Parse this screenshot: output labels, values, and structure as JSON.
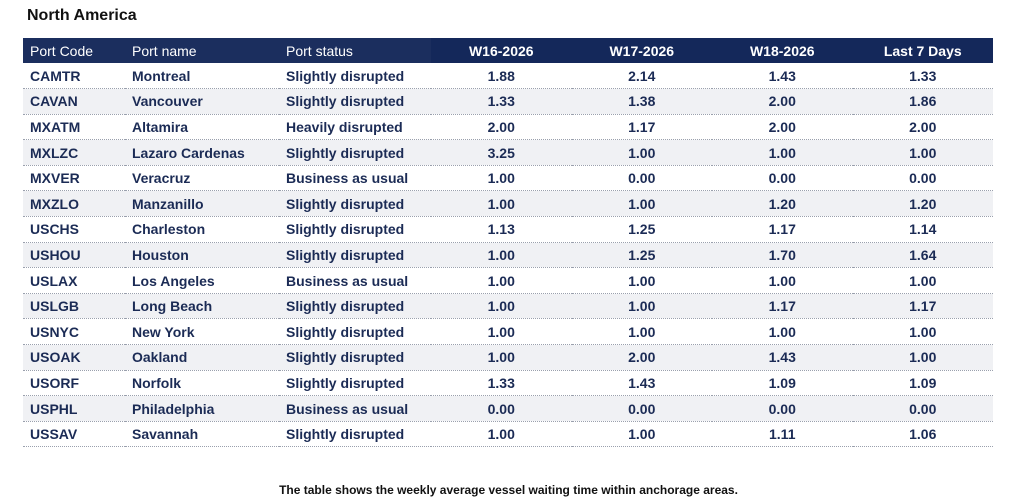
{
  "region_title": "North America",
  "columns": [
    "Port Code",
    "Port name",
    "Port status",
    "W16-2026",
    "W17-2026",
    "W18-2026",
    "Last 7 Days"
  ],
  "rows": [
    [
      "CAMTR",
      "Montreal",
      "Slightly disrupted",
      "1.88",
      "2.14",
      "1.43",
      "1.33"
    ],
    [
      "CAVAN",
      "Vancouver",
      "Slightly disrupted",
      "1.33",
      "1.38",
      "2.00",
      "1.86"
    ],
    [
      "MXATM",
      "Altamira",
      "Heavily disrupted",
      "2.00",
      "1.17",
      "2.00",
      "2.00"
    ],
    [
      "MXLZC",
      "Lazaro Cardenas",
      "Slightly disrupted",
      "3.25",
      "1.00",
      "1.00",
      "1.00"
    ],
    [
      "MXVER",
      "Veracruz",
      "Business as usual",
      "1.00",
      "0.00",
      "0.00",
      "0.00"
    ],
    [
      "MXZLO",
      "Manzanillo",
      "Slightly disrupted",
      "1.00",
      "1.00",
      "1.20",
      "1.20"
    ],
    [
      "USCHS",
      "Charleston",
      "Slightly disrupted",
      "1.13",
      "1.25",
      "1.17",
      "1.14"
    ],
    [
      "USHOU",
      "Houston",
      "Slightly disrupted",
      "1.00",
      "1.25",
      "1.70",
      "1.64"
    ],
    [
      "USLAX",
      "Los Angeles",
      "Business as usual",
      "1.00",
      "1.00",
      "1.00",
      "1.00"
    ],
    [
      "USLGB",
      "Long Beach",
      "Slightly disrupted",
      "1.00",
      "1.00",
      "1.17",
      "1.17"
    ],
    [
      "USNYC",
      "New York",
      "Slightly disrupted",
      "1.00",
      "1.00",
      "1.00",
      "1.00"
    ],
    [
      "USOAK",
      "Oakland",
      "Slightly disrupted",
      "1.00",
      "2.00",
      "1.43",
      "1.00"
    ],
    [
      "USORF",
      "Norfolk",
      "Slightly disrupted",
      "1.33",
      "1.43",
      "1.09",
      "1.09"
    ],
    [
      "USPHL",
      "Philadelphia",
      "Business as usual",
      "0.00",
      "0.00",
      "0.00",
      "0.00"
    ],
    [
      "USSAV",
      "Savannah",
      "Slightly disrupted",
      "1.00",
      "1.00",
      "1.11",
      "1.06"
    ]
  ],
  "footnote": "The table shows the weekly average vessel waiting time within anchorage areas.",
  "colors": {
    "header_bg": "#1b2e5e",
    "header_week_bg": "#14285a",
    "header_text": "#ffffff",
    "row_text": "#1b2b55",
    "row_alt_bg": "#f0f1f4"
  }
}
